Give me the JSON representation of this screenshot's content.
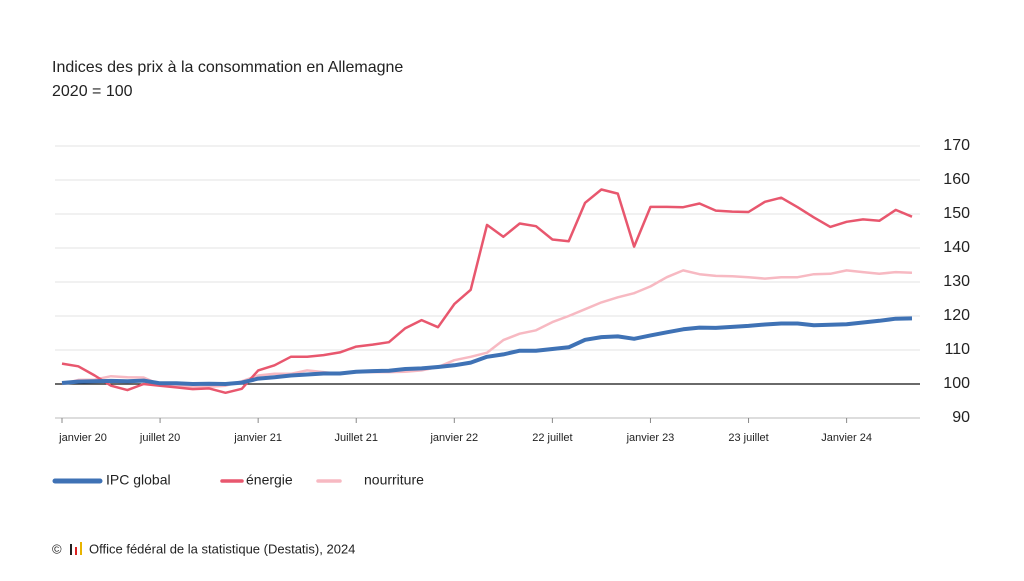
{
  "chart_data": {
    "type": "line",
    "title": "Indices des prix à la consommation en Allemagne",
    "subtitle": "2020 = 100",
    "copyright": "©",
    "source": "Office fédéral de la statistique (Destatis), 2024",
    "categories": [
      "janvier 20",
      null,
      null,
      null,
      null,
      null,
      "juillet 20",
      null,
      null,
      null,
      null,
      null,
      "janvier 21",
      null,
      null,
      null,
      null,
      null,
      "Juillet 21",
      null,
      null,
      null,
      null,
      null,
      "janvier 22",
      null,
      null,
      null,
      null,
      null,
      "22 juillet",
      null,
      null,
      null,
      null,
      null,
      "janvier 23",
      null,
      null,
      null,
      null,
      null,
      "23 juillet",
      null,
      null,
      null,
      null,
      null,
      "Janvier 24",
      null,
      null,
      null,
      null
    ],
    "series": [
      {
        "name": "IPC global",
        "color": "#3f72b5",
        "width": 4,
        "values": [
          100.3,
          100.7,
          100.8,
          100.9,
          100.8,
          101.0,
          100.2,
          100.2,
          100.0,
          100.1,
          100.0,
          100.4,
          101.6,
          102.0,
          102.5,
          102.8,
          103.1,
          103.1,
          103.6,
          103.8,
          103.9,
          104.4,
          104.6,
          105.0,
          105.5,
          106.3,
          108.0,
          108.7,
          109.8,
          109.8,
          110.3,
          110.8,
          113.0,
          113.8,
          114.0,
          113.3,
          114.3,
          115.2,
          116.1,
          116.6,
          116.5,
          116.8,
          117.1,
          117.5,
          117.8,
          117.8,
          117.3,
          117.4,
          117.6,
          118.1,
          118.6,
          119.2,
          119.3
        ]
      },
      {
        "name": "énergie",
        "color": "#e8576e",
        "width": 2.5,
        "values": [
          106.0,
          105.2,
          102.5,
          99.5,
          98.2,
          100.0,
          99.5,
          99.0,
          98.5,
          98.7,
          97.4,
          98.6,
          104.0,
          105.5,
          108.0,
          108.0,
          108.5,
          109.3,
          111.0,
          111.6,
          112.3,
          116.4,
          118.8,
          116.7,
          123.5,
          127.7,
          146.8,
          143.3,
          147.2,
          146.4,
          142.5,
          142.0,
          153.3,
          157.2,
          156.0,
          140.4,
          152.1,
          152.1,
          152.0,
          153.1,
          151.0,
          150.7,
          150.6,
          153.6,
          154.8,
          152.0,
          149.0,
          146.2,
          147.7,
          148.4,
          148.0,
          151.2,
          149.2
        ]
      },
      {
        "name": "nourriture",
        "color": "#f7b9c2",
        "width": 2.5,
        "values": [
          100.0,
          101.2,
          101.3,
          102.3,
          102.0,
          101.9,
          99.8,
          99.4,
          99.0,
          99.2,
          99.5,
          100.8,
          102.5,
          103.0,
          103.0,
          104.0,
          103.5,
          103.0,
          103.5,
          103.5,
          103.5,
          103.6,
          104.0,
          105.0,
          107.0,
          108.0,
          109.2,
          112.9,
          114.8,
          115.8,
          118.2,
          120.0,
          122.0,
          124.0,
          125.5,
          126.7,
          128.7,
          131.4,
          133.4,
          132.3,
          131.8,
          131.7,
          131.4,
          131.0,
          131.4,
          131.4,
          132.3,
          132.4,
          133.4,
          132.9,
          132.4,
          132.9,
          132.7
        ]
      }
    ],
    "baseline": 100,
    "ylim": [
      90,
      170
    ],
    "yticks": [
      90,
      100,
      110,
      120,
      130,
      140,
      150,
      160,
      170
    ],
    "grid": true
  }
}
